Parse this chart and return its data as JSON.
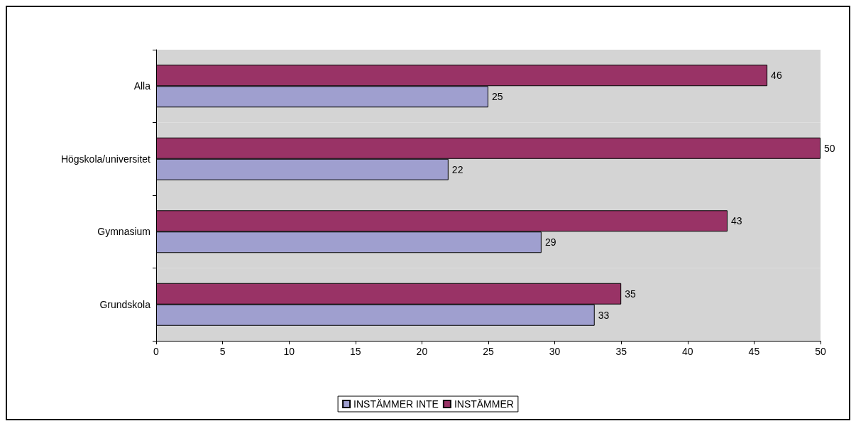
{
  "chart_data": {
    "type": "bar",
    "orientation": "horizontal",
    "categories": [
      "Alla",
      "Högskola/universitet",
      "Gymnasium",
      "Grundskola"
    ],
    "series": [
      {
        "name": "INSTÄMMER INTE",
        "color": "#9f9fcf",
        "values": [
          25,
          22,
          29,
          33
        ]
      },
      {
        "name": "INSTÄMMER",
        "color": "#993366",
        "values": [
          46,
          50,
          43,
          35
        ]
      }
    ],
    "xlim": [
      0,
      50
    ],
    "xticks": [
      0,
      5,
      10,
      15,
      20,
      25,
      30,
      35,
      40,
      45,
      50
    ],
    "grid": false,
    "legend": "bottom",
    "data_labels": true
  }
}
